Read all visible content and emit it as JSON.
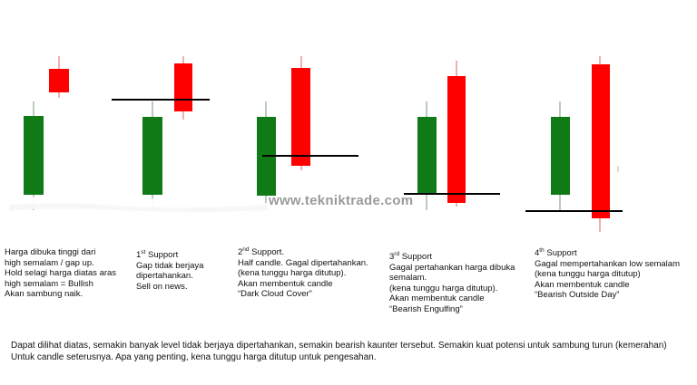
{
  "colors": {
    "bullish": "#0f7a16",
    "bearish": "#ff0000",
    "wick": "#7a9a7a",
    "level_line": "#000000"
  },
  "watermark": "www.tekniktrade.com",
  "panels": [
    {
      "lines": [
        "Harga dibuka tinggi dari",
        "high semalam / gap up.",
        "Hold selagi harga diatas aras",
        "high semalam = Bullish",
        "Akan sambung naik."
      ]
    },
    {
      "heading_num": "1",
      "heading_sup": "st",
      "heading_rest": " Support",
      "lines": [
        "Gap tidak berjaya",
        "dipertahankan.",
        "Sell on news."
      ]
    },
    {
      "heading_num": "2",
      "heading_sup": "nd",
      "heading_rest": " Support.",
      "lines": [
        "Half candle. Gagal dipertahankan.",
        "(kena tunggu harga ditutup).",
        "Akan membentuk candle",
        "“Dark Cloud Cover”"
      ]
    },
    {
      "heading_num": "3",
      "heading_sup": "rd",
      "heading_rest": " Support",
      "lines": [
        "Gagal pertahankan harga dibuka",
        "semalam.",
        "(kena tunggu harga ditutup).",
        "Akan membentuk candle",
        "“Bearish Engulfing”"
      ]
    },
    {
      "heading_num": "4",
      "heading_sup": "th",
      "heading_rest": " Support",
      "lines": [
        "Gagal mempertahankan low semalam",
        "(kena tunggu harga ditutup)",
        "Akan membentuk candle",
        "“Bearish Outside Day”"
      ]
    }
  ],
  "footer": {
    "line1": "Dapat dilihat diatas, semakin banyak level tidak berjaya dipertahankan, semakin bearish kaunter tersebut. Semakin kuat potensi untuk sambung turun (kemerahan)",
    "line2": "Untuk candle seterusnya.  Apa yang penting,  kena tunggu  harga ditutup untuk pengesahan."
  }
}
